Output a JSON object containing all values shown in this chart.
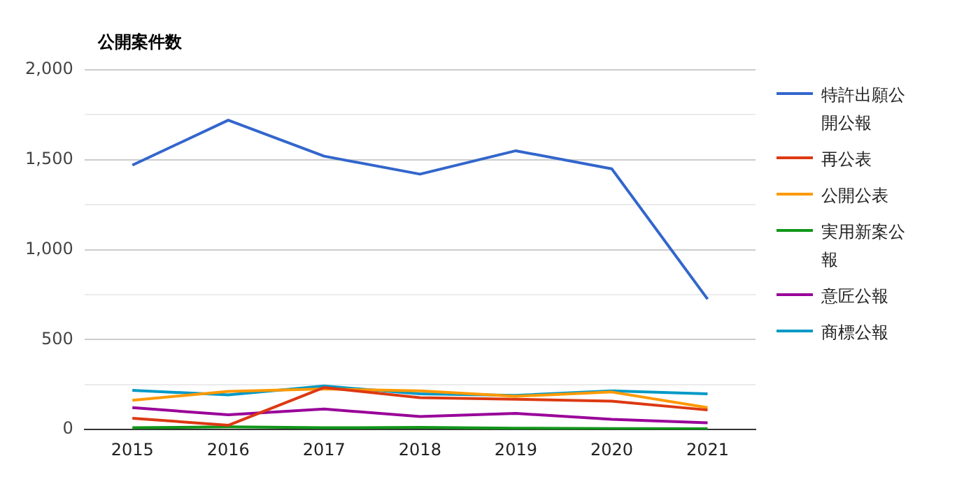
{
  "chart_data": {
    "type": "line",
    "title": "公開案件数",
    "categories": [
      "2015",
      "2016",
      "2017",
      "2018",
      "2019",
      "2020",
      "2021"
    ],
    "series": [
      {
        "name": "特許出願公開公報",
        "color": "#3366cc",
        "values": [
          1470,
          1720,
          1520,
          1420,
          1550,
          1450,
          725
        ]
      },
      {
        "name": "再公表",
        "color": "#dc3912",
        "values": [
          63,
          24,
          234,
          177,
          169,
          158,
          109
        ]
      },
      {
        "name": "公開公表",
        "color": "#ff9900",
        "values": [
          163,
          212,
          226,
          215,
          185,
          209,
          122
        ]
      },
      {
        "name": "実用新案公報",
        "color": "#109618",
        "values": [
          10,
          15,
          10,
          12,
          8,
          6,
          5
        ]
      },
      {
        "name": "意匠公報",
        "color": "#990099",
        "values": [
          122,
          82,
          114,
          73,
          90,
          57,
          38
        ]
      },
      {
        "name": "商標公報",
        "color": "#0099c6",
        "values": [
          218,
          193,
          242,
          199,
          190,
          215,
          199
        ]
      }
    ],
    "ylim": [
      0,
      2000
    ],
    "yticks": [
      0,
      {
        "value": 250,
        "label": null
      },
      500,
      {
        "value": 750,
        "label": null
      },
      {
        "value": 1000,
        "label": "1,000"
      },
      {
        "value": 1250,
        "label": null
      },
      {
        "value": 1500,
        "label": "1,500"
      },
      {
        "value": 1750,
        "label": null
      },
      {
        "value": 2000,
        "label": "2,000"
      }
    ],
    "grid": "y",
    "legend": "right",
    "marker": "none",
    "line_style": "solid"
  }
}
